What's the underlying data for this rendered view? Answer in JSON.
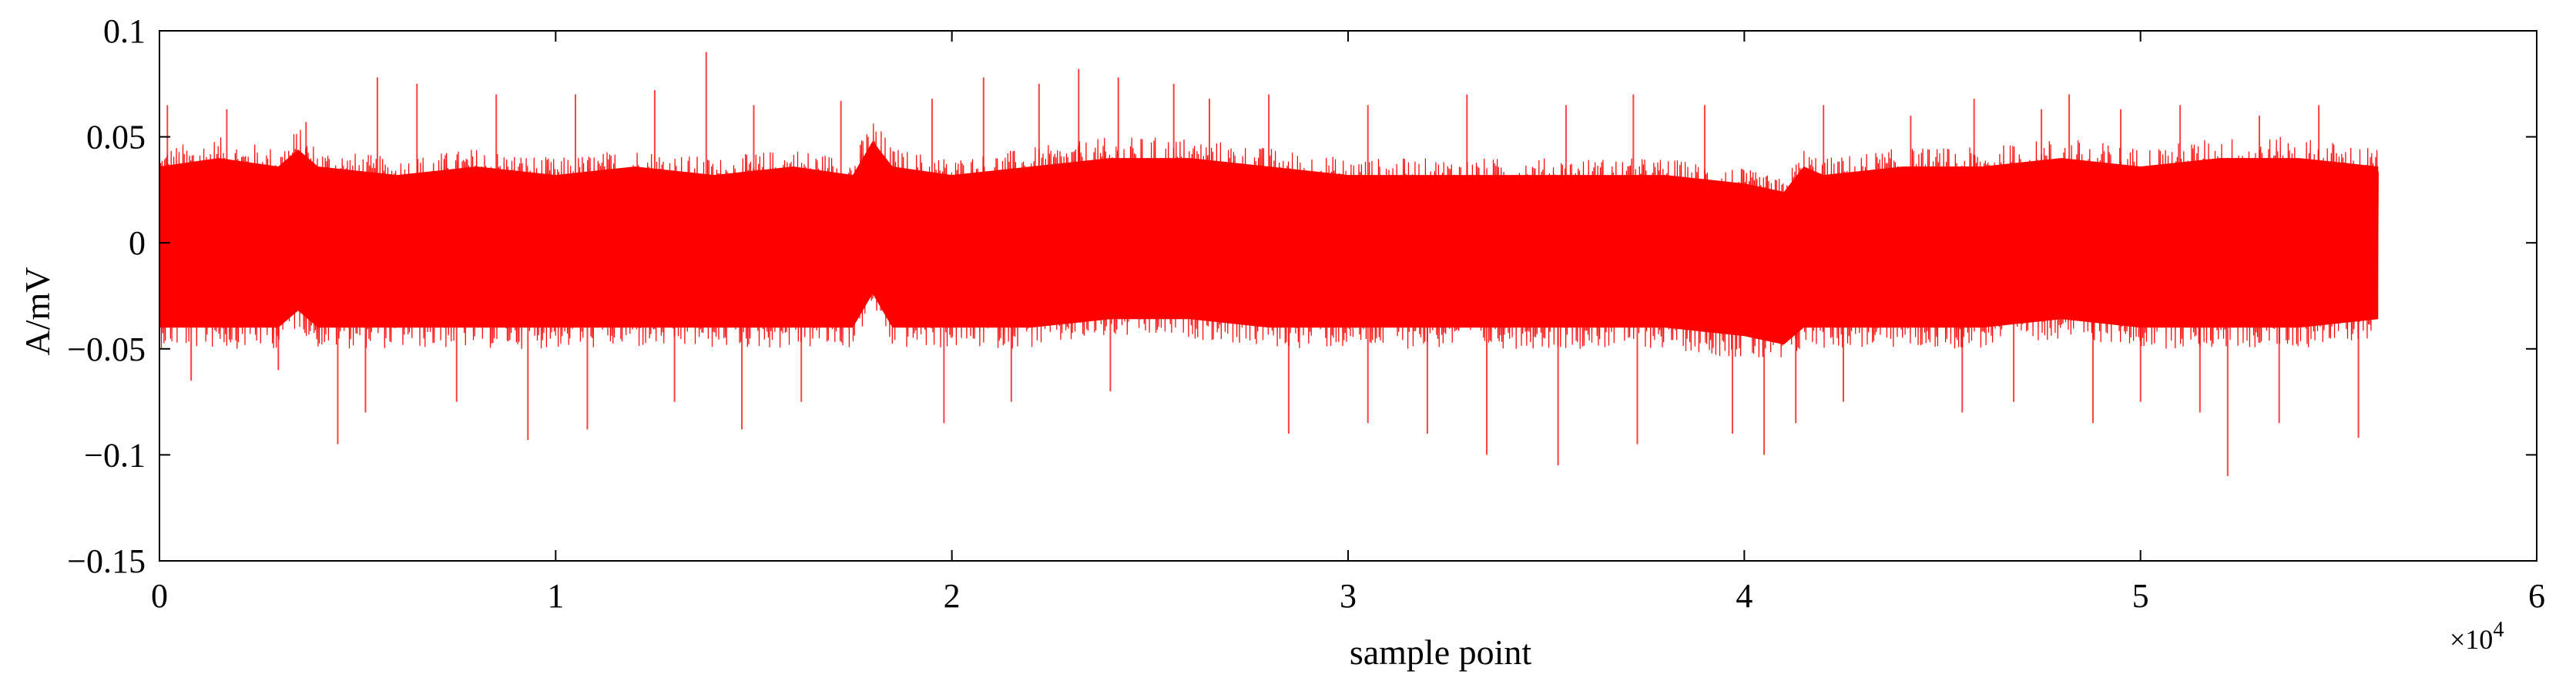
{
  "chart_data": {
    "type": "line",
    "title": "",
    "xlabel": "sample point",
    "ylabel": "A/mV",
    "x_scale_label": "×10",
    "x_scale_exponent": "4",
    "xlim": [
      0,
      6
    ],
    "ylim": [
      -0.15,
      0.1
    ],
    "xticks": [
      0,
      1,
      2,
      3,
      4,
      5,
      6
    ],
    "xtick_labels": [
      "0",
      "1",
      "2",
      "3",
      "4",
      "5",
      "6"
    ],
    "yticks": [
      -0.15,
      -0.1,
      -0.05,
      0,
      0.05,
      0.1
    ],
    "ytick_labels": [
      "−0.15",
      "−0.1",
      "−0.05",
      "0",
      "0.05",
      "0.1"
    ],
    "grid": false,
    "colors": {
      "signal": "#ff0000",
      "axis": "#000000"
    },
    "series": [
      {
        "x_start": 0,
        "x_end": 5.6,
        "envelope_x": [
          0,
          0.15,
          0.3,
          0.35,
          0.4,
          0.6,
          0.8,
          1.0,
          1.2,
          1.4,
          1.6,
          1.75,
          1.8,
          1.85,
          2.0,
          2.2,
          2.4,
          2.6,
          2.8,
          3.0,
          3.2,
          3.4,
          3.6,
          3.8,
          4.0,
          4.1,
          4.15,
          4.2,
          4.4,
          4.6,
          4.8,
          5.0,
          5.2,
          5.4,
          5.6
        ],
        "envelope_upper": [
          0.045,
          0.05,
          0.045,
          0.055,
          0.045,
          0.04,
          0.045,
          0.04,
          0.045,
          0.04,
          0.045,
          0.04,
          0.06,
          0.045,
          0.04,
          0.045,
          0.05,
          0.05,
          0.045,
          0.04,
          0.04,
          0.04,
          0.04,
          0.04,
          0.035,
          0.03,
          0.045,
          0.04,
          0.045,
          0.045,
          0.05,
          0.045,
          0.05,
          0.05,
          0.045
        ],
        "envelope_lower": [
          -0.05,
          -0.05,
          -0.05,
          -0.04,
          -0.05,
          -0.05,
          -0.05,
          -0.05,
          -0.05,
          -0.05,
          -0.05,
          -0.05,
          -0.03,
          -0.05,
          -0.05,
          -0.05,
          -0.045,
          -0.045,
          -0.05,
          -0.05,
          -0.05,
          -0.05,
          -0.05,
          -0.05,
          -0.055,
          -0.06,
          -0.05,
          -0.05,
          -0.05,
          -0.05,
          -0.045,
          -0.05,
          -0.05,
          -0.05,
          -0.045
        ],
        "spikes": [
          [
            0.02,
            0.065
          ],
          [
            0.17,
            0.063
          ],
          [
            0.37,
            0.057
          ],
          [
            0.55,
            0.078
          ],
          [
            0.65,
            0.075
          ],
          [
            0.85,
            0.07
          ],
          [
            1.05,
            0.07
          ],
          [
            1.25,
            0.072
          ],
          [
            1.38,
            0.09
          ],
          [
            1.5,
            0.065
          ],
          [
            1.72,
            0.067
          ],
          [
            1.95,
            0.068
          ],
          [
            2.08,
            0.078
          ],
          [
            2.22,
            0.075
          ],
          [
            2.32,
            0.082
          ],
          [
            2.42,
            0.078
          ],
          [
            2.56,
            0.075
          ],
          [
            2.65,
            0.068
          ],
          [
            2.8,
            0.07
          ],
          [
            3.05,
            0.065
          ],
          [
            3.3,
            0.07
          ],
          [
            3.55,
            0.065
          ],
          [
            3.72,
            0.07
          ],
          [
            3.9,
            0.065
          ],
          [
            4.2,
            0.065
          ],
          [
            4.42,
            0.06
          ],
          [
            4.58,
            0.068
          ],
          [
            4.75,
            0.063
          ],
          [
            4.82,
            0.07
          ],
          [
            4.95,
            0.063
          ],
          [
            5.1,
            0.065
          ],
          [
            5.3,
            0.06
          ],
          [
            5.45,
            0.065
          ],
          [
            0.08,
            -0.065
          ],
          [
            0.3,
            -0.06
          ],
          [
            0.45,
            -0.095
          ],
          [
            0.52,
            -0.08
          ],
          [
            0.75,
            -0.075
          ],
          [
            0.93,
            -0.093
          ],
          [
            1.08,
            -0.088
          ],
          [
            1.3,
            -0.075
          ],
          [
            1.47,
            -0.088
          ],
          [
            1.62,
            -0.075
          ],
          [
            1.98,
            -0.085
          ],
          [
            2.15,
            -0.075
          ],
          [
            2.4,
            -0.07
          ],
          [
            2.85,
            -0.09
          ],
          [
            3.05,
            -0.085
          ],
          [
            3.2,
            -0.09
          ],
          [
            3.35,
            -0.1
          ],
          [
            3.53,
            -0.105
          ],
          [
            3.73,
            -0.095
          ],
          [
            3.97,
            -0.09
          ],
          [
            4.05,
            -0.1
          ],
          [
            4.13,
            -0.085
          ],
          [
            4.25,
            -0.075
          ],
          [
            4.55,
            -0.08
          ],
          [
            4.68,
            -0.075
          ],
          [
            4.88,
            -0.085
          ],
          [
            5.0,
            -0.075
          ],
          [
            5.15,
            -0.08
          ],
          [
            5.22,
            -0.11
          ],
          [
            5.35,
            -0.085
          ],
          [
            5.55,
            -0.092
          ]
        ]
      }
    ]
  }
}
